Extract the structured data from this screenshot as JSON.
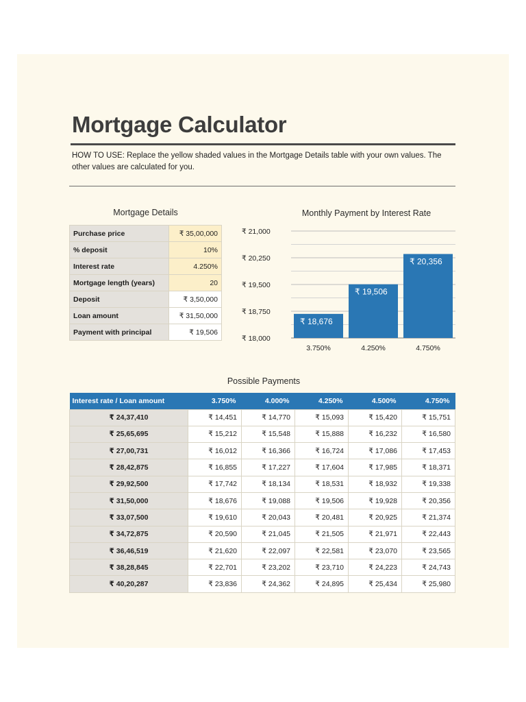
{
  "document": {
    "title": "Mortgage Calculator",
    "how_to_use": "HOW TO USE: Replace the yellow shaded values in the Mortgage Details table with your own values. The other values are calculated for you."
  },
  "details": {
    "title": "Mortgage Details",
    "rows": [
      {
        "label": "Purchase price",
        "value": "₹ 35,00,000",
        "input": true
      },
      {
        "label": "% deposit",
        "value": "10%",
        "input": true
      },
      {
        "label": "Interest rate",
        "value": "4.250%",
        "input": true
      },
      {
        "label": "Mortgage length (years)",
        "value": "20",
        "input": true
      },
      {
        "label": "Deposit",
        "value": "₹ 3,50,000",
        "input": false
      },
      {
        "label": "Loan amount",
        "value": "₹ 31,50,000",
        "input": false
      },
      {
        "label": "Payment with principal",
        "value": "₹ 19,506",
        "input": false
      }
    ]
  },
  "chart_data": {
    "type": "bar",
    "title": "Monthly Payment by Interest Rate",
    "categories": [
      "3.750%",
      "4.250%",
      "4.750%"
    ],
    "values": [
      18676,
      19506,
      20356
    ],
    "data_labels": [
      "₹ 18,676",
      "₹ 19,506",
      "₹ 20,356"
    ],
    "y_tick_labels": [
      "₹ 18,000",
      "₹ 18,750",
      "₹ 19,500",
      "₹ 20,250",
      "₹ 21,000"
    ],
    "y_ticks": [
      18000,
      18750,
      19500,
      20250,
      21000
    ],
    "ylim": [
      18000,
      21000
    ],
    "grid": true,
    "legend": "none",
    "bar_color": "#2a77b4"
  },
  "payments": {
    "title": "Possible Payments",
    "corner_label": "Interest rate / Loan amount",
    "rates": [
      "3.750%",
      "4.000%",
      "4.250%",
      "4.500%",
      "4.750%"
    ],
    "rows": [
      {
        "loan": "₹ 24,37,410",
        "values": [
          "₹ 14,451",
          "₹ 14,770",
          "₹ 15,093",
          "₹ 15,420",
          "₹ 15,751"
        ]
      },
      {
        "loan": "₹ 25,65,695",
        "values": [
          "₹ 15,212",
          "₹ 15,548",
          "₹ 15,888",
          "₹ 16,232",
          "₹ 16,580"
        ]
      },
      {
        "loan": "₹ 27,00,731",
        "values": [
          "₹ 16,012",
          "₹ 16,366",
          "₹ 16,724",
          "₹ 17,086",
          "₹ 17,453"
        ]
      },
      {
        "loan": "₹ 28,42,875",
        "values": [
          "₹ 16,855",
          "₹ 17,227",
          "₹ 17,604",
          "₹ 17,985",
          "₹ 18,371"
        ]
      },
      {
        "loan": "₹ 29,92,500",
        "values": [
          "₹ 17,742",
          "₹ 18,134",
          "₹ 18,531",
          "₹ 18,932",
          "₹ 19,338"
        ]
      },
      {
        "loan": "₹ 31,50,000",
        "values": [
          "₹ 18,676",
          "₹ 19,088",
          "₹ 19,506",
          "₹ 19,928",
          "₹ 20,356"
        ]
      },
      {
        "loan": "₹ 33,07,500",
        "values": [
          "₹ 19,610",
          "₹ 20,043",
          "₹ 20,481",
          "₹ 20,925",
          "₹ 21,374"
        ]
      },
      {
        "loan": "₹ 34,72,875",
        "values": [
          "₹ 20,590",
          "₹ 21,045",
          "₹ 21,505",
          "₹ 21,971",
          "₹ 22,443"
        ]
      },
      {
        "loan": "₹ 36,46,519",
        "values": [
          "₹ 21,620",
          "₹ 22,097",
          "₹ 22,581",
          "₹ 23,070",
          "₹ 23,565"
        ]
      },
      {
        "loan": "₹ 38,28,845",
        "values": [
          "₹ 22,701",
          "₹ 23,202",
          "₹ 23,710",
          "₹ 24,223",
          "₹ 24,743"
        ]
      },
      {
        "loan": "₹ 40,20,287",
        "values": [
          "₹ 23,836",
          "₹ 24,362",
          "₹ 24,895",
          "₹ 25,434",
          "₹ 25,980"
        ]
      }
    ]
  }
}
